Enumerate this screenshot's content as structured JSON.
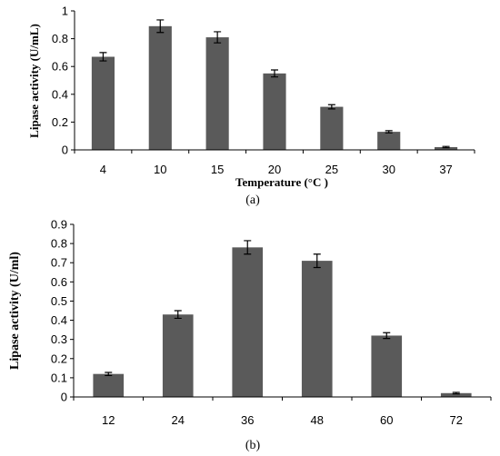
{
  "chart_data": [
    {
      "type": "bar",
      "panel_label": "(a)",
      "categories": [
        "4",
        "10",
        "15",
        "20",
        "25",
        "30",
        "37"
      ],
      "values": [
        0.67,
        0.89,
        0.81,
        0.55,
        0.31,
        0.13,
        0.02
      ],
      "errors": [
        0.03,
        0.045,
        0.04,
        0.025,
        0.015,
        0.008,
        0.005
      ],
      "xlabel": "Temperature (°C )",
      "ylabel": "Lipase activity (U/mL)",
      "ylim": [
        0,
        1
      ],
      "yticks": [
        "0",
        "0.2",
        "0.4",
        "0.6",
        "0.8",
        "1"
      ],
      "bar_color": "#5a5a5a",
      "grid": false
    },
    {
      "type": "bar",
      "panel_label": "(b)",
      "categories": [
        "12",
        "24",
        "36",
        "48",
        "60",
        "72"
      ],
      "values": [
        0.12,
        0.43,
        0.78,
        0.71,
        0.32,
        0.02
      ],
      "errors": [
        0.008,
        0.02,
        0.035,
        0.035,
        0.015,
        0.004
      ],
      "xlabel": "",
      "ylabel": "Lipase  activity (U/ml)",
      "ylim": [
        0,
        0.9
      ],
      "yticks": [
        "0",
        "0.1",
        "0.2",
        "0.3",
        "0.4",
        "0.5",
        "0.6",
        "0.7",
        "0.8",
        "0.9"
      ],
      "bar_color": "#5a5a5a",
      "grid": false
    }
  ]
}
